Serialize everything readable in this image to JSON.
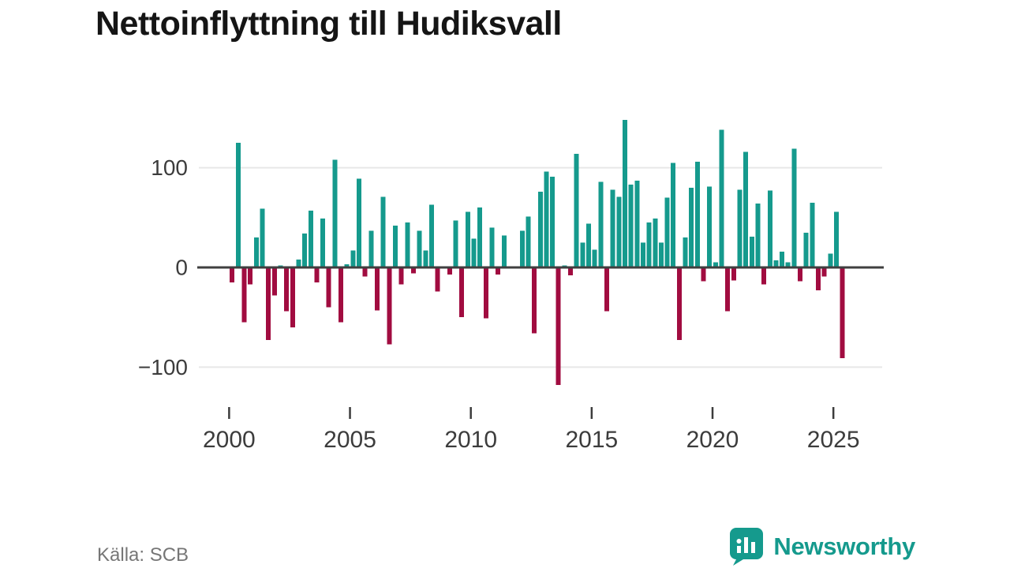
{
  "header": {
    "title": "Nettoinflyttning till Hudiksvall"
  },
  "chart_data": {
    "type": "bar",
    "title": "Nettoinflyttning till Hudiksvall",
    "frequency": "quarterly",
    "start_period": "2000 Q1",
    "end_period": "2025 Q2",
    "values": [
      -15,
      125,
      -55,
      -17,
      30,
      59,
      -73,
      -28,
      2,
      -44,
      -60,
      8,
      34,
      57,
      -15,
      49,
      -40,
      108,
      -55,
      3,
      17,
      89,
      -9,
      37,
      -43,
      71,
      -77,
      42,
      -17,
      45,
      -6,
      37,
      17,
      63,
      -24,
      0,
      -7,
      47,
      -50,
      56,
      29,
      60,
      -51,
      40,
      -7,
      32,
      0,
      0,
      37,
      51,
      -66,
      76,
      96,
      91,
      -118,
      2,
      -8,
      114,
      25,
      44,
      18,
      86,
      -44,
      78,
      71,
      148,
      83,
      87,
      25,
      45,
      49,
      25,
      70,
      105,
      -73,
      30,
      80,
      106,
      -14,
      81,
      5,
      138,
      -44,
      -13,
      78,
      116,
      31,
      64,
      -17,
      77,
      7,
      16,
      5,
      119,
      -14,
      35,
      65,
      -23,
      -9,
      14,
      56,
      -91
    ],
    "y_ticks": [
      {
        "label": "100",
        "value": 100
      },
      {
        "label": "0",
        "value": 0
      },
      {
        "label": "−100",
        "value": -100
      }
    ],
    "x_ticks": [
      2000,
      2005,
      2010,
      2015,
      2020,
      2025
    ],
    "ylim": [
      -130,
      160
    ],
    "grid": "horizontal",
    "legend": "none",
    "colors": {
      "positive": "#159A8D",
      "negative": "#A10C40"
    }
  },
  "footer": {
    "source": "Källa: SCB",
    "brand": "Newsworthy"
  }
}
